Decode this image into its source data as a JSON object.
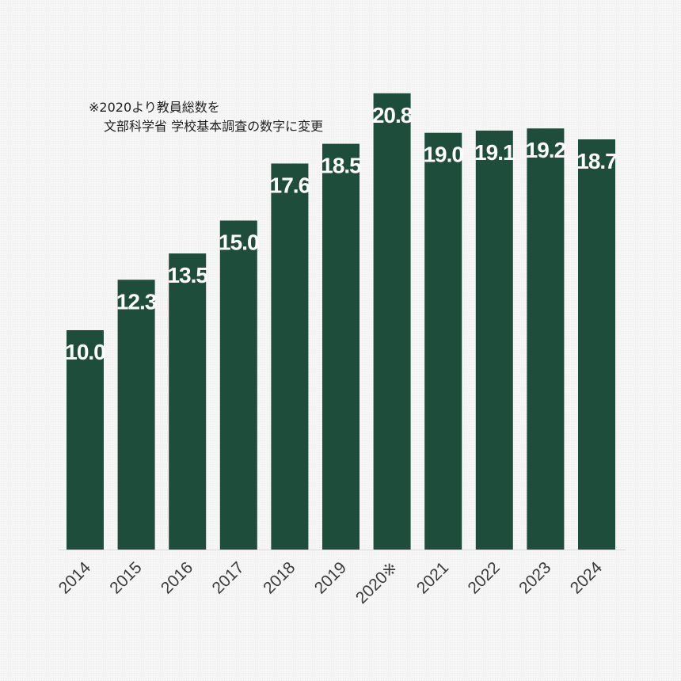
{
  "chart_data": {
    "type": "bar",
    "categories": [
      "2014",
      "2015",
      "2016",
      "2017",
      "2018",
      "2019",
      "2020※",
      "2021",
      "2022",
      "2023",
      "2024"
    ],
    "values": [
      10.0,
      12.3,
      13.5,
      15.0,
      17.6,
      18.5,
      20.8,
      19.0,
      19.1,
      19.2,
      18.7
    ],
    "value_labels": [
      "10.0",
      "12.3",
      "13.5",
      "15.0",
      "17.6",
      "18.5",
      "20.8",
      "19.0",
      "19.1",
      "19.2",
      "18.7"
    ],
    "title": "",
    "xlabel": "",
    "ylabel": "",
    "ylim": [
      0,
      25
    ],
    "grid": false,
    "legend": "none",
    "bar_color": "#1f4d3b",
    "annotation": {
      "line1": "※2020より教員総数を",
      "line2": "文部科学省 学校基本調査の数字に変更"
    }
  }
}
